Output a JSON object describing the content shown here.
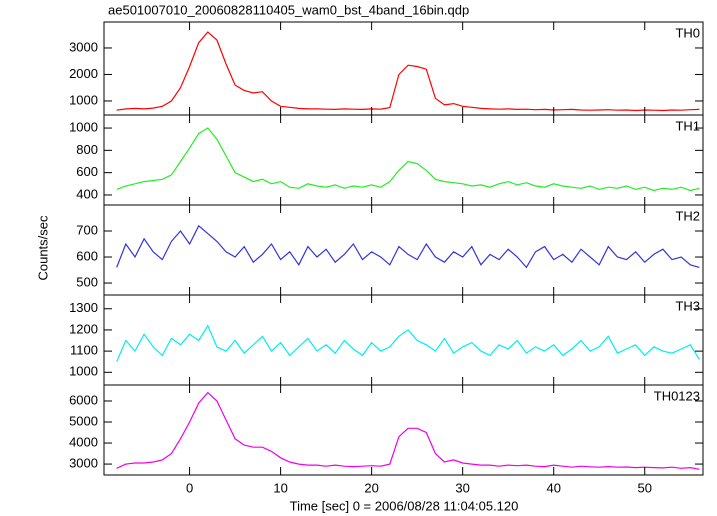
{
  "title": "ae501007010_20060828110405_wam0_bst_4band_16bin.qdp",
  "y_label": "Counts/sec",
  "x_label": "Time [sec] 0 = 2006/08/28 11:04:05.120",
  "x": [
    -8,
    -7,
    -6,
    -5,
    -4,
    -3,
    -2,
    -1,
    0,
    1,
    2,
    3,
    4,
    5,
    6,
    7,
    8,
    9,
    10,
    11,
    12,
    13,
    14,
    15,
    16,
    17,
    18,
    19,
    20,
    21,
    22,
    23,
    24,
    25,
    26,
    27,
    28,
    29,
    30,
    31,
    32,
    33,
    34,
    35,
    36,
    37,
    38,
    39,
    40,
    41,
    42,
    43,
    44,
    45,
    46,
    47,
    48,
    49,
    50,
    51,
    52,
    53,
    54,
    55,
    56
  ],
  "xlim": [
    -9.4,
    56.4
  ],
  "xticks": [
    0,
    10,
    20,
    30,
    40,
    50
  ],
  "chart_data": [
    {
      "type": "line",
      "name": "TH0",
      "color": "#ff0000",
      "ylim": [
        470,
        3980
      ],
      "yticks": [
        1000,
        2000,
        3000
      ],
      "values": [
        650,
        700,
        720,
        700,
        730,
        800,
        1000,
        1500,
        2300,
        3200,
        3600,
        3300,
        2400,
        1600,
        1400,
        1300,
        1350,
        1000,
        800,
        760,
        720,
        700,
        700,
        690,
        680,
        700,
        690,
        680,
        700,
        690,
        750,
        2000,
        2350,
        2300,
        2200,
        1100,
        850,
        900,
        800,
        760,
        720,
        700,
        690,
        700,
        680,
        690,
        670,
        680,
        660,
        670,
        680,
        660,
        650,
        660,
        670,
        650,
        660,
        640,
        660,
        650,
        640,
        660,
        650,
        670,
        680
      ]
    },
    {
      "type": "line",
      "name": "TH1",
      "color": "#22ee22",
      "ylim": [
        310,
        1117
      ],
      "yticks": [
        400,
        600,
        800,
        1000
      ],
      "values": [
        450,
        480,
        500,
        520,
        530,
        540,
        580,
        700,
        820,
        950,
        1000,
        900,
        750,
        600,
        560,
        520,
        540,
        500,
        520,
        470,
        460,
        500,
        480,
        470,
        490,
        460,
        480,
        470,
        490,
        470,
        520,
        620,
        700,
        680,
        620,
        540,
        520,
        510,
        500,
        480,
        490,
        470,
        500,
        520,
        490,
        510,
        480,
        470,
        500,
        480,
        470,
        460,
        480,
        450,
        470,
        460,
        480,
        450,
        470,
        440,
        460,
        450,
        470,
        440,
        460
      ]
    },
    {
      "type": "line",
      "name": "TH2",
      "color": "#3333dd",
      "ylim": [
        454,
        800
      ],
      "yticks": [
        500,
        600,
        700
      ],
      "values": [
        560,
        650,
        600,
        670,
        620,
        590,
        660,
        700,
        650,
        720,
        690,
        660,
        620,
        600,
        640,
        580,
        610,
        650,
        590,
        620,
        570,
        640,
        600,
        630,
        580,
        610,
        650,
        590,
        620,
        600,
        570,
        640,
        610,
        590,
        650,
        600,
        580,
        620,
        600,
        640,
        570,
        610,
        590,
        630,
        600,
        560,
        620,
        640,
        590,
        610,
        580,
        630,
        600,
        570,
        640,
        600,
        590,
        620,
        580,
        610,
        630,
        590,
        600,
        570,
        560
      ]
    },
    {
      "type": "line",
      "name": "TH3",
      "color": "#00eeee",
      "ylim": [
        940,
        1365
      ],
      "yticks": [
        1000,
        1100,
        1200,
        1300
      ],
      "values": [
        1050,
        1150,
        1100,
        1180,
        1120,
        1080,
        1160,
        1130,
        1180,
        1150,
        1220,
        1120,
        1100,
        1150,
        1090,
        1130,
        1170,
        1100,
        1140,
        1080,
        1120,
        1160,
        1100,
        1130,
        1090,
        1150,
        1110,
        1080,
        1140,
        1100,
        1120,
        1170,
        1200,
        1150,
        1130,
        1100,
        1160,
        1090,
        1120,
        1140,
        1100,
        1080,
        1130,
        1110,
        1150,
        1090,
        1120,
        1100,
        1130,
        1080,
        1110,
        1150,
        1100,
        1120,
        1170,
        1090,
        1110,
        1130,
        1080,
        1120,
        1100,
        1090,
        1110,
        1130,
        1060
      ]
    },
    {
      "type": "line",
      "name": "TH0123",
      "color": "#ee00ee",
      "ylim": [
        2480,
        6760
      ],
      "yticks": [
        3000,
        4000,
        5000,
        6000
      ],
      "values": [
        2800,
        3000,
        3050,
        3050,
        3100,
        3200,
        3500,
        4200,
        5000,
        5900,
        6400,
        6000,
        5100,
        4200,
        3900,
        3800,
        3800,
        3600,
        3300,
        3100,
        3000,
        2950,
        2950,
        2900,
        2950,
        2900,
        2880,
        2900,
        2920,
        2900,
        3000,
        4300,
        4700,
        4700,
        4500,
        3500,
        3100,
        3200,
        3050,
        3000,
        2950,
        2950,
        2900,
        2950,
        2920,
        2950,
        2900,
        2880,
        2950,
        2900,
        2850,
        2900,
        2870,
        2850,
        2880,
        2850,
        2860,
        2830,
        2850,
        2830,
        2820,
        2850,
        2800,
        2830,
        2750
      ]
    }
  ]
}
